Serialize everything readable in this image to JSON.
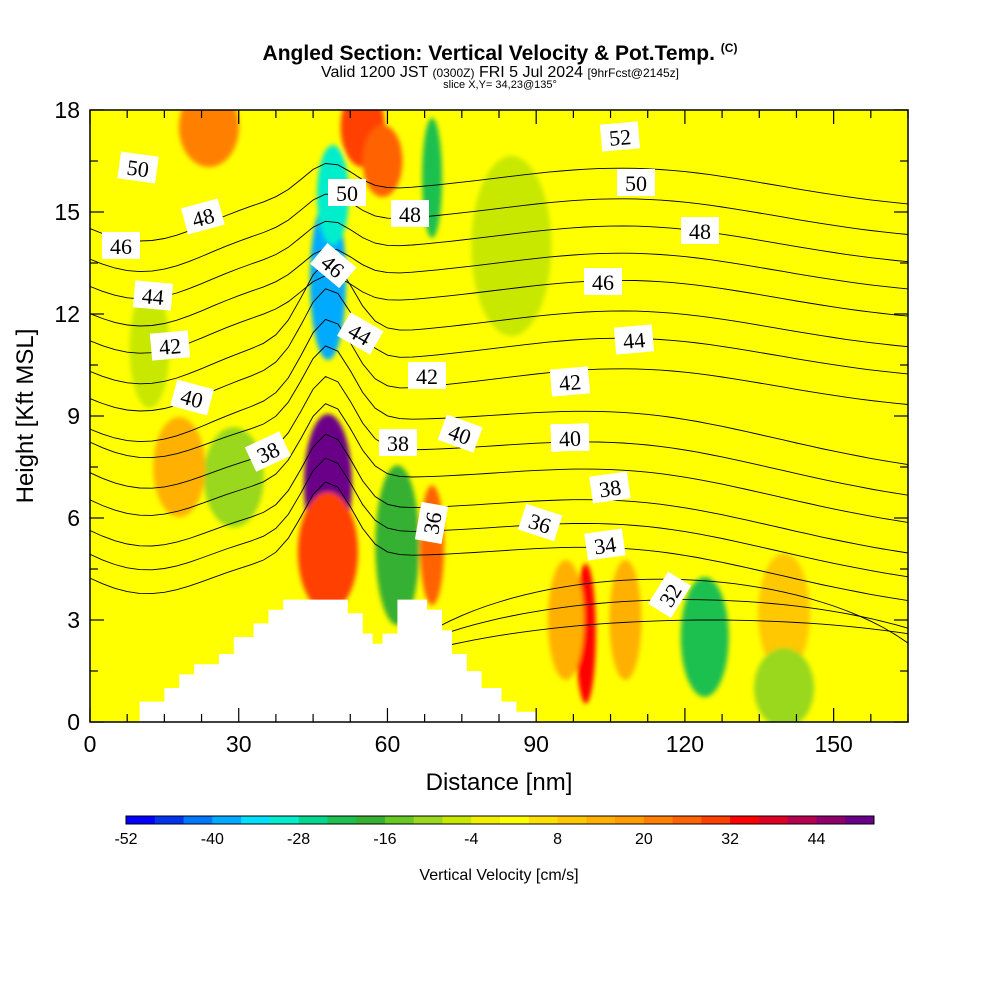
{
  "title": {
    "main": "Angled Section: Vertical Velocity & Pot.Temp.",
    "mark": "(C)",
    "valid_prefix": "Valid 1200 JST",
    "valid_utc": "(0300Z)",
    "valid_date": "FRI 5 Jul 2024",
    "fcst": "[9hrFcst@2145z]",
    "slice": "slice X,Y= 34,23@135°"
  },
  "chart_data": {
    "type": "heatmap",
    "xlabel": "Distance [nm]",
    "ylabel": "Height [Kft MSL]",
    "xlim": [
      0,
      165
    ],
    "ylim": [
      0,
      18
    ],
    "xticks": [
      0,
      30,
      60,
      90,
      120,
      150
    ],
    "yticks": [
      0,
      3,
      6,
      9,
      12,
      15,
      18
    ],
    "colorbar": {
      "label": "Vertical Velocity [cm/s]",
      "ticks": [
        -52,
        -40,
        -28,
        -16,
        -4,
        8,
        20,
        32,
        44
      ],
      "range": [
        -52,
        52
      ],
      "colors": [
        "#0000ff",
        "#0033ee",
        "#0077ff",
        "#00aaff",
        "#00e0ff",
        "#00eecc",
        "#00d890",
        "#1ec050",
        "#36b030",
        "#66c822",
        "#99d81e",
        "#c8e800",
        "#f0f000",
        "#ffff00",
        "#ffe000",
        "#ffc800",
        "#ffb000",
        "#ff9c00",
        "#ff8000",
        "#ff6200",
        "#ff4000",
        "#ff0000",
        "#e00024",
        "#b80050",
        "#90006c",
        "#6a0088"
      ]
    },
    "contour_labels": [
      "32",
      "34",
      "36",
      "36",
      "38",
      "38",
      "38",
      "38",
      "40",
      "40",
      "40",
      "40",
      "42",
      "42",
      "42",
      "44",
      "44",
      "44",
      "46",
      "46",
      "46",
      "48",
      "48",
      "48",
      "50",
      "50",
      "50",
      "52"
    ],
    "value_blobs": [
      {
        "x": 48,
        "y": 7.0,
        "value": 48
      },
      {
        "x": 48,
        "y": 5.0,
        "value": 28
      },
      {
        "x": 55,
        "y": 17.5,
        "value": 30
      },
      {
        "x": 59,
        "y": 16.5,
        "value": 26
      },
      {
        "x": 100,
        "y": 2.6,
        "value": 32
      },
      {
        "x": 69,
        "y": 5.2,
        "value": 26
      },
      {
        "x": 48,
        "y": 13.0,
        "value": -40
      },
      {
        "x": 49,
        "y": 15.5,
        "value": -30
      },
      {
        "x": 69,
        "y": 16.0,
        "value": -24
      },
      {
        "x": 62,
        "y": 5.2,
        "value": -18
      },
      {
        "x": 124,
        "y": 2.5,
        "value": -22
      },
      {
        "x": 29,
        "y": 7.2,
        "value": -12
      },
      {
        "x": 24,
        "y": 17.5,
        "value": 20
      },
      {
        "x": 96,
        "y": 3.0,
        "value": 14
      },
      {
        "x": 108,
        "y": 3.0,
        "value": 12
      },
      {
        "x": 140,
        "y": 3.2,
        "value": 10
      },
      {
        "x": 18,
        "y": 7.5,
        "value": 12
      },
      {
        "x": 12,
        "y": 11.0,
        "value": -8
      },
      {
        "x": 140,
        "y": 1.0,
        "value": -10
      },
      {
        "x": 85,
        "y": 14.0,
        "value": -6
      }
    ]
  }
}
